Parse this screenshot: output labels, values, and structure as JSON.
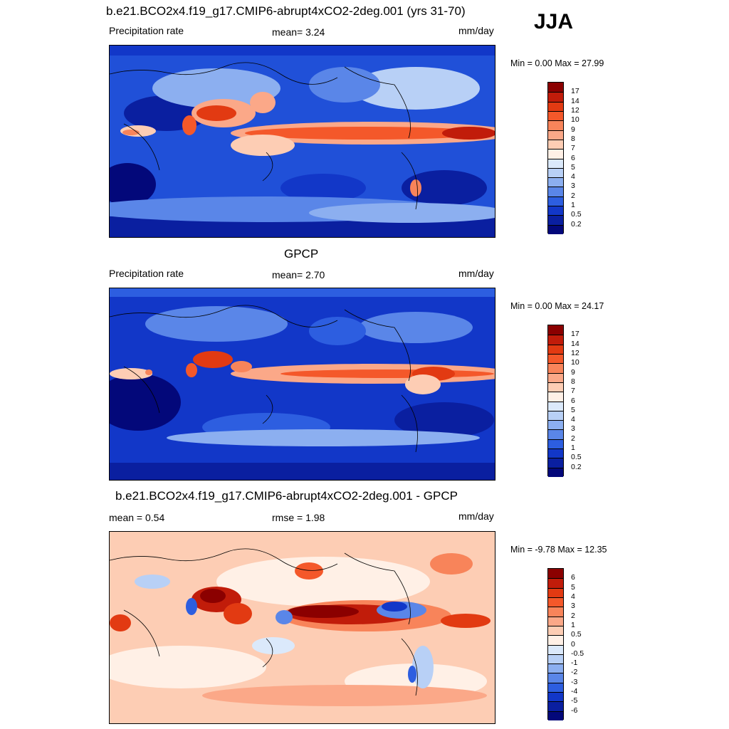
{
  "season": "JJA",
  "panels": [
    {
      "title": "b.e21.BCO2x4.f19_g17.CMIP6-abrupt4xCO2-2deg.001 (yrs 31-70)",
      "left_label": "Precipitation rate",
      "center_label": "mean=   3.24",
      "right_label": "mm/day",
      "minmax": "Min =   0.00 Max =  27.99",
      "colorbar_labels": [
        "17",
        "14",
        "12",
        "10",
        "9",
        "8",
        "7",
        "6",
        "5",
        "4",
        "3",
        "2",
        "1",
        "0.5",
        "0.2"
      ]
    },
    {
      "title": "GPCP",
      "left_label": "Precipitation rate",
      "center_label": "mean=   2.70",
      "right_label": "mm/day",
      "minmax": "Min =   0.00 Max =  24.17",
      "colorbar_labels": [
        "17",
        "14",
        "12",
        "10",
        "9",
        "8",
        "7",
        "6",
        "5",
        "4",
        "3",
        "2",
        "1",
        "0.5",
        "0.2"
      ]
    },
    {
      "title": "b.e21.BCO2x4.f19_g17.CMIP6-abrupt4xCO2-2deg.001 - GPCP",
      "left_label": "mean =   0.54",
      "center_label": "rmse =   1.98",
      "right_label": "mm/day",
      "minmax": "Min =  -9.78 Max =  12.35",
      "colorbar_labels": [
        "6",
        "5",
        "4",
        "3",
        "2",
        "1",
        "0.5",
        "0",
        "-0.5",
        "-1",
        "-2",
        "-3",
        "-4",
        "-5",
        "-6"
      ]
    }
  ],
  "colors": {
    "precip_scale": [
      "#8b0000",
      "#c11c0a",
      "#e23a12",
      "#f4582a",
      "#f8845a",
      "#fba888",
      "#fdcdb4",
      "#fff0e6",
      "#dbe9fb",
      "#b8d0f6",
      "#8caff0",
      "#5a86e8",
      "#2d5ee0",
      "#1237c8",
      "#0a1fa0",
      "#03087a"
    ],
    "diff_scale": [
      "#8b0000",
      "#c11c0a",
      "#e23a12",
      "#f4582a",
      "#f8845a",
      "#fba888",
      "#fdcdb4",
      "#fff0e6",
      "#dbe9fb",
      "#b8d0f6",
      "#8caff0",
      "#5a86e8",
      "#2d5ee0",
      "#1237c8",
      "#0a1fa0",
      "#03087a"
    ]
  }
}
